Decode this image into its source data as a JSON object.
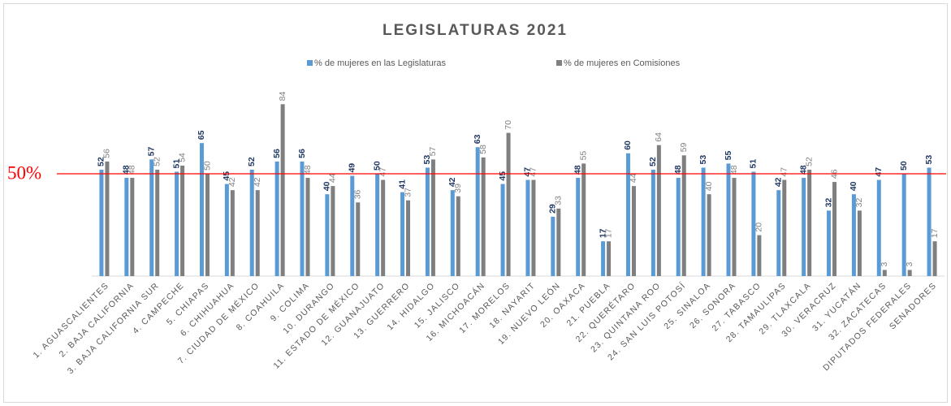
{
  "chart_data": {
    "type": "bar",
    "title": "LEGISLATURAS  2021",
    "categories": [
      "1. AGUASCALIENTES",
      "2. BAJA CALIFORNIA",
      "3. BAJA CALIFORNIA SUR",
      "4. CAMPECHE",
      "5. CHIAPAS",
      "6. CHIHUAHUA",
      "7. CIUDAD DE MÉXICO",
      "8. COAHUILA",
      "9. COLIMA",
      "10. DURANGO",
      "11. ESTADO DE MÉXICO",
      "12. GUANAJUATO",
      "13. GUERRERO",
      "14. HIDALGO",
      "15. JALISCO",
      "16. MICHOACÁN",
      "17. MORELOS",
      "18. NAYARIT",
      "19. NUEVO LEÓN",
      "20. OAXACA",
      "21. PUEBLA",
      "22. QUERÉTARO",
      "23. QUINTANA ROO",
      "24. SAN LUIS POTOSÍ",
      "25. SINALOA",
      "26. SONORA",
      "27. TABASCO",
      "28. TAMAULIPAS",
      "29. TLAXCALA",
      "30. VERACRUZ",
      "31. YUCATÁN",
      "32. ZACATECAS",
      "DIPUTADOS FEDERALES",
      "SENADORES"
    ],
    "series": [
      {
        "name": "% de mujeres en las Legislaturas",
        "color": "#5b9bd5",
        "label_color": "#1f3864",
        "values": [
          52,
          48,
          57,
          51,
          65,
          45,
          52,
          56,
          56,
          40,
          49,
          50,
          41,
          53,
          42,
          63,
          45,
          47,
          29,
          48,
          17,
          60,
          52,
          48,
          53,
          55,
          51,
          42,
          48,
          32,
          40,
          47,
          50,
          53
        ]
      },
      {
        "name": "% de mujeres en Comisiones",
        "color": "#7f7f7f",
        "label_color": "#808080",
        "values": [
          56,
          48,
          52,
          54,
          50,
          42,
          42,
          84,
          48,
          44,
          36,
          47,
          37,
          57,
          39,
          58,
          70,
          47,
          33,
          55,
          17,
          44,
          64,
          59,
          40,
          48,
          20,
          47,
          52,
          46,
          32,
          3,
          3,
          17
        ]
      }
    ],
    "ylim": [
      0,
      100
    ],
    "reference_line": {
      "value": 50,
      "label": "50%",
      "color": "#ff0000"
    }
  }
}
